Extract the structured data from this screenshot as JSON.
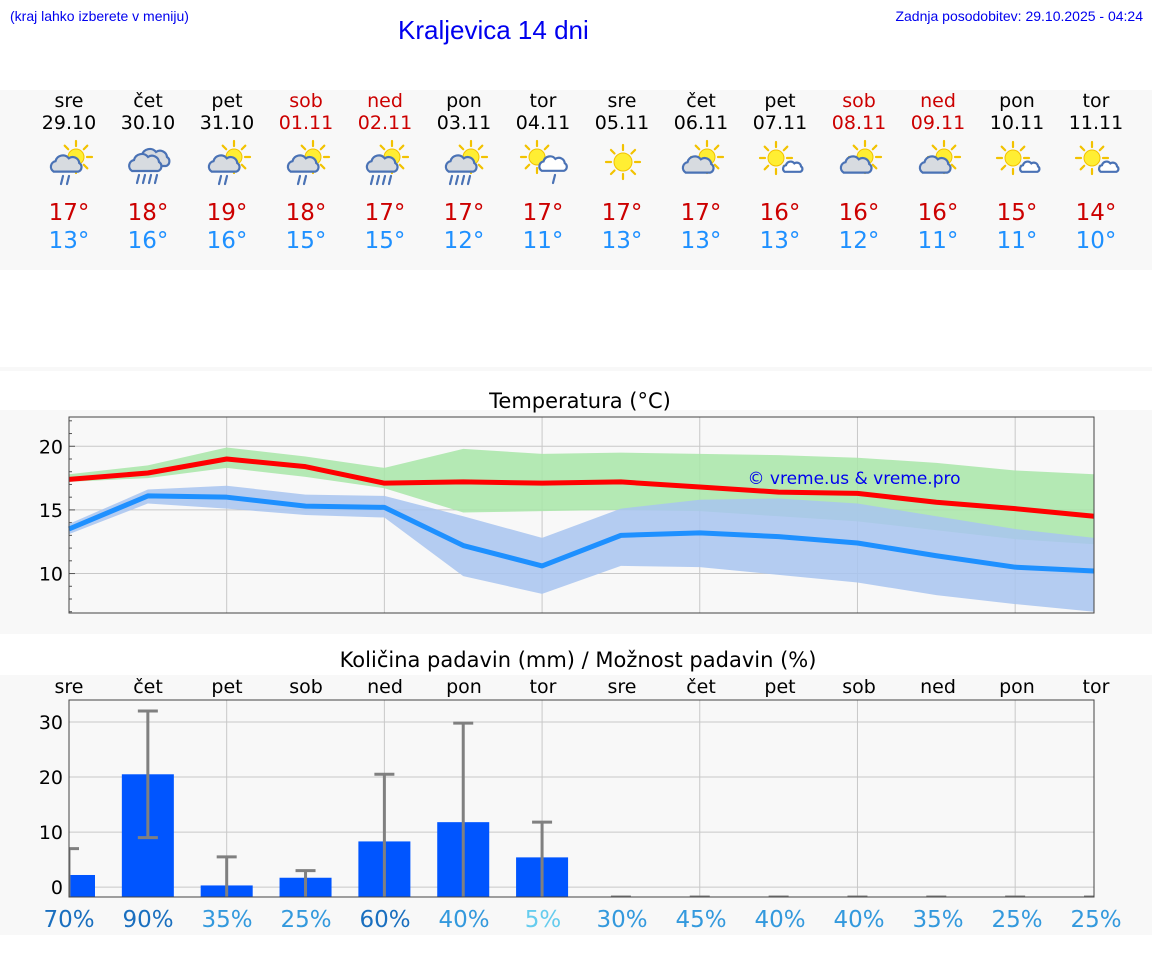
{
  "header": {
    "hint": "(kraj lahko izberete v meniju)",
    "title": "Kraljevica 14 dni",
    "updated": "Zadnja posodobitev: 29.10.2025 - 04:24"
  },
  "colors": {
    "link": "#0000ee",
    "weekend": "#cc0000",
    "weekday": "#000000",
    "tmax": "#cc0000",
    "tmin": "#1e90ff",
    "max_line": "#ff0000",
    "min_line": "#1e90ff",
    "max_band": "#a8e6a8",
    "min_band": "#a8c4f0",
    "overlap_band": "#7cc7a3",
    "bar": "#0055ff",
    "errorbar": "#808080"
  },
  "days": [
    {
      "name": "sre",
      "date": "29.10",
      "weekend": false,
      "icon": "sun-cloud-drizzle-icon",
      "tmax": "17°",
      "tmin": "13°"
    },
    {
      "name": "čet",
      "date": "30.10",
      "weekend": false,
      "icon": "cloud-heavy-rain-icon",
      "tmax": "18°",
      "tmin": "16°"
    },
    {
      "name": "pet",
      "date": "31.10",
      "weekend": false,
      "icon": "sun-cloud-drizzle-icon",
      "tmax": "19°",
      "tmin": "16°"
    },
    {
      "name": "sob",
      "date": "01.11",
      "weekend": true,
      "icon": "sun-cloud-drizzle-icon",
      "tmax": "18°",
      "tmin": "15°"
    },
    {
      "name": "ned",
      "date": "02.11",
      "weekend": true,
      "icon": "sun-cloud-rain-icon",
      "tmax": "17°",
      "tmin": "15°"
    },
    {
      "name": "pon",
      "date": "03.11",
      "weekend": false,
      "icon": "sun-cloud-rain-icon",
      "tmax": "17°",
      "tmin": "12°"
    },
    {
      "name": "tor",
      "date": "04.11",
      "weekend": false,
      "icon": "sun-cloud-light-rain-icon",
      "tmax": "17°",
      "tmin": "11°"
    },
    {
      "name": "sre",
      "date": "05.11",
      "weekend": false,
      "icon": "sun-icon",
      "tmax": "17°",
      "tmin": "13°"
    },
    {
      "name": "čet",
      "date": "06.11",
      "weekend": false,
      "icon": "sun-cloud-icon",
      "tmax": "17°",
      "tmin": "13°"
    },
    {
      "name": "pet",
      "date": "07.11",
      "weekend": false,
      "icon": "sun-small-cloud-icon",
      "tmax": "16°",
      "tmin": "13°"
    },
    {
      "name": "sob",
      "date": "08.11",
      "weekend": true,
      "icon": "sun-cloud-icon",
      "tmax": "16°",
      "tmin": "12°"
    },
    {
      "name": "ned",
      "date": "09.11",
      "weekend": true,
      "icon": "sun-cloud-icon",
      "tmax": "16°",
      "tmin": "11°"
    },
    {
      "name": "pon",
      "date": "10.11",
      "weekend": false,
      "icon": "sun-small-cloud-icon",
      "tmax": "15°",
      "tmin": "11°"
    },
    {
      "name": "tor",
      "date": "11.11",
      "weekend": false,
      "icon": "sun-small-cloud-icon",
      "tmax": "14°",
      "tmin": "10°"
    }
  ],
  "chart_data": [
    {
      "type": "line",
      "title": "Temperatura (°C)",
      "watermark": "© vreme.us & vreme.pro",
      "x": [
        0,
        1,
        2,
        3,
        4,
        5,
        6,
        7,
        8,
        9,
        10,
        11,
        12,
        13
      ],
      "ylim": [
        6.9,
        22.3
      ],
      "yticks": [
        10,
        15,
        20
      ],
      "grid": true,
      "series": [
        {
          "name": "max",
          "values": [
            17.4,
            17.9,
            19.0,
            18.4,
            17.1,
            17.2,
            17.1,
            17.2,
            16.8,
            16.4,
            16.3,
            15.6,
            15.1,
            14.5
          ],
          "band_low": [
            17.2,
            17.5,
            18.3,
            17.6,
            16.7,
            14.8,
            14.9,
            15.0,
            14.9,
            14.5,
            14.1,
            13.4,
            12.7,
            12.3
          ],
          "band_high": [
            17.8,
            18.5,
            19.9,
            19.2,
            18.3,
            19.8,
            19.4,
            19.5,
            19.4,
            19.3,
            19.1,
            18.7,
            18.1,
            17.8
          ]
        },
        {
          "name": "min",
          "values": [
            13.5,
            16.1,
            16.0,
            15.3,
            15.2,
            12.2,
            10.6,
            13.0,
            13.2,
            12.9,
            12.4,
            11.4,
            10.5,
            10.2
          ],
          "band_low": [
            13.1,
            15.5,
            15.1,
            14.6,
            14.4,
            9.8,
            8.4,
            10.6,
            10.5,
            9.9,
            9.3,
            8.3,
            7.6,
            7.0
          ],
          "band_high": [
            13.9,
            16.6,
            16.9,
            16.2,
            16.1,
            14.5,
            12.8,
            15.1,
            15.8,
            15.9,
            15.5,
            14.5,
            13.5,
            12.8
          ]
        }
      ]
    },
    {
      "type": "bar",
      "title": "Količina padavin (mm) / Možnost padavin (%)",
      "categories": [
        "sre",
        "čet",
        "pet",
        "sob",
        "ned",
        "pon",
        "tor",
        "sre",
        "čet",
        "pet",
        "sob",
        "ned",
        "pon",
        "tor"
      ],
      "values": [
        2.2,
        20.5,
        0.3,
        1.7,
        8.3,
        11.8,
        5.4,
        0,
        0,
        0,
        0,
        0,
        0,
        0
      ],
      "error_high": [
        7.0,
        32.0,
        5.5,
        3.0,
        20.5,
        29.8,
        11.8,
        0.1,
        0.1,
        0.1,
        0.1,
        0.1,
        0.1,
        0.1
      ],
      "error_low": [
        0,
        9.0,
        0,
        0,
        0,
        0,
        0,
        0,
        0,
        0,
        0,
        0,
        0,
        0
      ],
      "ylim": [
        -1.8,
        34.0
      ],
      "yticks": [
        0,
        10,
        20,
        30
      ],
      "probability": [
        "70%",
        "90%",
        "35%",
        "25%",
        "60%",
        "40%",
        "5%",
        "30%",
        "45%",
        "40%",
        "40%",
        "35%",
        "25%",
        "25%"
      ],
      "probability_colors": [
        "#1a6fbf",
        "#1a6fbf",
        "#3399dd",
        "#3399dd",
        "#1a6fbf",
        "#3399dd",
        "#66ccee",
        "#3399dd",
        "#3399dd",
        "#3399dd",
        "#3399dd",
        "#3399dd",
        "#3399dd",
        "#3399dd"
      ]
    }
  ]
}
